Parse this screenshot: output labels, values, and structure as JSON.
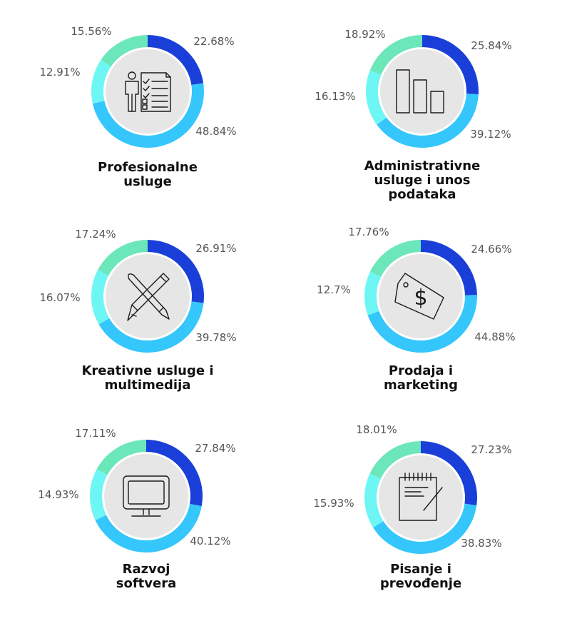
{
  "colors": {
    "series": [
      "#1a3fd9",
      "#35c6fb",
      "#6ef6f5",
      "#6be7b9"
    ],
    "inner_circle": "#e6e6e6",
    "inner_border": "#ffffff"
  },
  "chart_data": [
    {
      "type": "pie",
      "icon": "resume-checklist-icon",
      "title_lines": [
        "Profesionalne",
        "usluge"
      ],
      "values": [
        22.68,
        48.84,
        12.91,
        15.56
      ],
      "labels": [
        "22.68%",
        "48.84%",
        "12.91%",
        "15.56%"
      ]
    },
    {
      "type": "pie",
      "icon": "bar-chart-icon",
      "title_lines": [
        "Administrativne",
        "usluge i unos",
        "podataka"
      ],
      "values": [
        25.84,
        39.12,
        16.13,
        18.92
      ],
      "labels": [
        "25.84%",
        "39.12%",
        "16.13%",
        "18.92%"
      ]
    },
    {
      "type": "pie",
      "icon": "pencil-brush-icon",
      "title_lines": [
        "Kreativne usluge i",
        "multimedija"
      ],
      "values": [
        26.91,
        39.78,
        16.07,
        17.24
      ],
      "labels": [
        "26.91%",
        "39.78%",
        "16.07%",
        "17.24%"
      ]
    },
    {
      "type": "pie",
      "icon": "price-tag-icon",
      "title_lines": [
        "Prodaja i",
        "marketing"
      ],
      "values": [
        24.66,
        44.88,
        12.7,
        17.76
      ],
      "labels": [
        "24.66%",
        "44.88%",
        "12.7%",
        "17.76%"
      ]
    },
    {
      "type": "pie",
      "icon": "monitor-icon",
      "title_lines": [
        "Razvoj",
        "softvera"
      ],
      "values": [
        27.84,
        40.12,
        14.93,
        17.11
      ],
      "labels": [
        "27.84%",
        "40.12%",
        "14.93%",
        "17.11%"
      ]
    },
    {
      "type": "pie",
      "icon": "notepad-pen-icon",
      "title_lines": [
        "Pisanje i",
        "prevođenje"
      ],
      "values": [
        27.23,
        38.83,
        15.93,
        18.01
      ],
      "labels": [
        "27.23%",
        "38.83%",
        "15.93%",
        "18.01%"
      ]
    }
  ]
}
